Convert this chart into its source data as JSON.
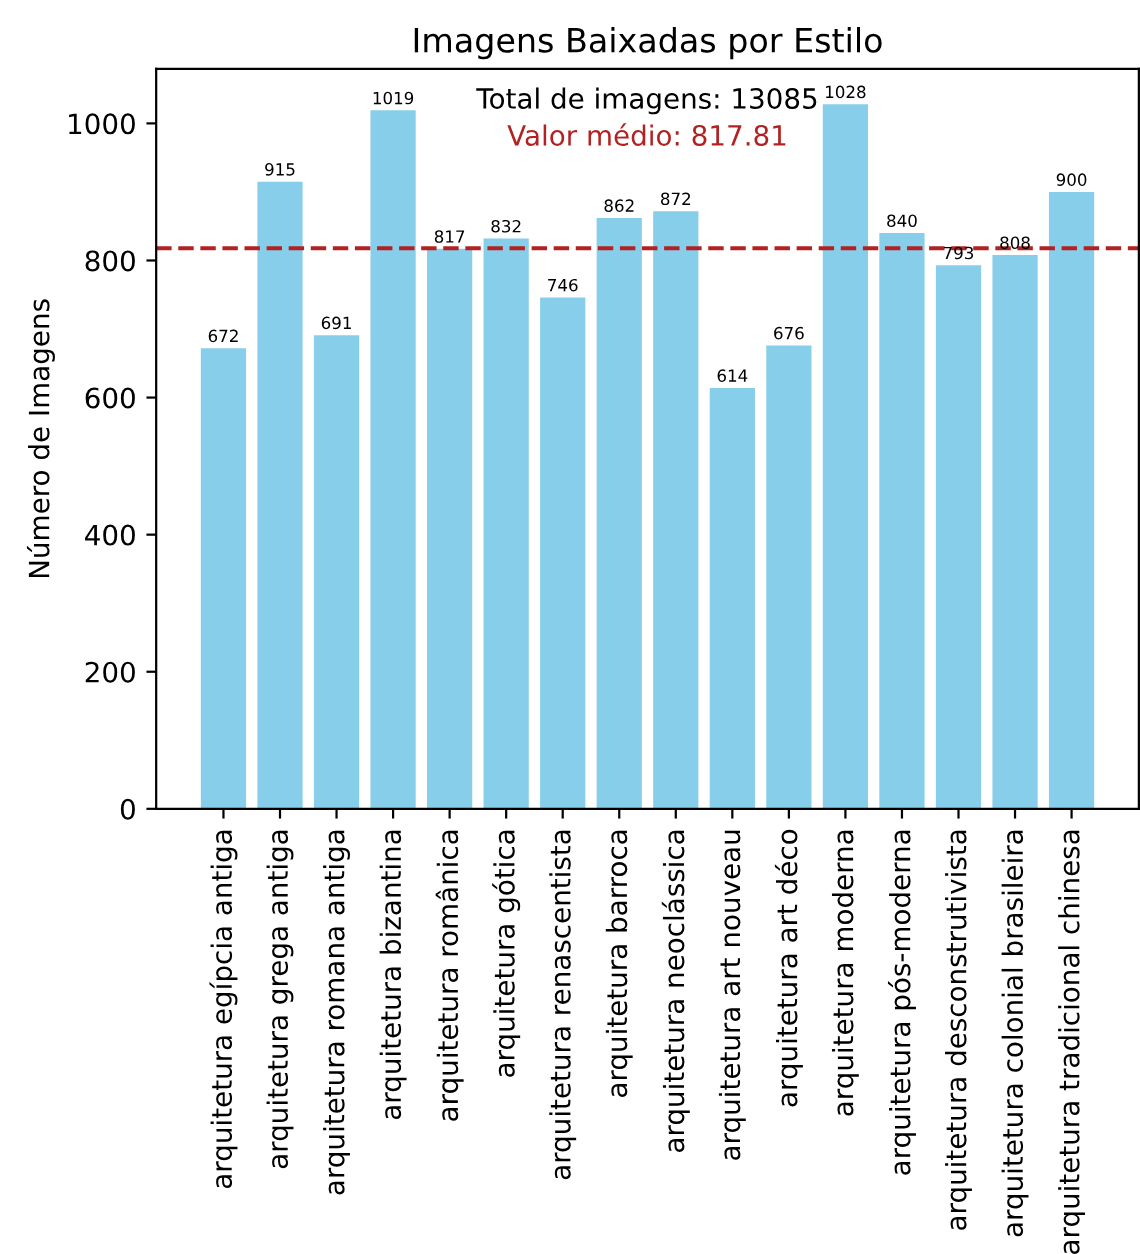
{
  "chart_data": {
    "type": "bar",
    "title": "Imagens Baixadas por Estilo",
    "ylabel": "Número de Imagens",
    "categories": [
      "arquitetura egípcia antiga",
      "arquitetura grega antiga",
      "arquitetura romana antiga",
      "arquitetura bizantina",
      "arquitetura românica",
      "arquitetura gótica",
      "arquitetura renascentista",
      "arquitetura barroca",
      "arquitetura neoclássica",
      "arquitetura art nouveau",
      "arquitetura art déco",
      "arquitetura moderna",
      "arquitetura pós-moderna",
      "arquitetura desconstrutivista",
      "arquitetura colonial brasileira",
      "arquitetura tradicional chinesa"
    ],
    "values": [
      672,
      915,
      691,
      1019,
      817,
      832,
      746,
      862,
      872,
      614,
      676,
      1028,
      840,
      793,
      808,
      900
    ],
    "color": "#87ceeb",
    "data_labels": true,
    "ylim": [
      0,
      1079.4
    ],
    "yticks": [
      0,
      200,
      400,
      600,
      800,
      1000
    ],
    "ref_lines": [
      {
        "axis": "y",
        "value": 817.81,
        "color": "#b22222",
        "line_style": "dashed"
      }
    ],
    "annotations": [
      "Total de imagens: 13085",
      "Valor médio: 817.81"
    ],
    "grid": false,
    "legend": false
  }
}
